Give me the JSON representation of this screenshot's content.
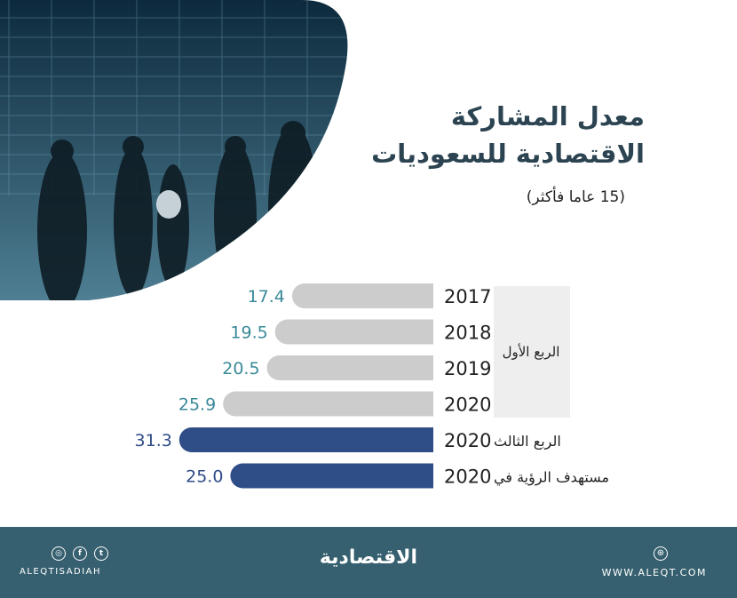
{
  "title_line1": "معدل المشاركة",
  "title_line2": "الاقتصادية للسعوديات",
  "subtitle": "(15 عاما فأكثر)",
  "chart_data": {
    "type": "bar",
    "orientation": "horizontal",
    "title": "معدل المشاركة الاقتصادية للسعوديات",
    "subtitle": "(15 عاما فأكثر)",
    "categories": [
      "2017",
      "2018",
      "2019",
      "2020",
      "الربع الثالث 2020",
      "مستهدف الرؤية في 2020"
    ],
    "year_labels": [
      "2017",
      "2018",
      "2019",
      "2020",
      "2020",
      "2020"
    ],
    "row_prefixes": [
      "",
      "",
      "",
      "",
      "الربع الثالث",
      "مستهدف الرؤية في"
    ],
    "values": [
      17.4,
      19.5,
      20.5,
      25.9,
      31.3,
      25.0
    ],
    "value_labels": [
      "17.4",
      "19.5",
      "20.5",
      "25.9",
      "31.3",
      "25.0"
    ],
    "group_label": "الربع الأول",
    "bar_colors": [
      "#cccccc",
      "#cccccc",
      "#cccccc",
      "#cccccc",
      "#2f4d87",
      "#2f4d87"
    ],
    "value_colors": [
      "#3a8a99",
      "#3a8a99",
      "#3a8a99",
      "#3a8a99",
      "#2f4d87",
      "#2f4d87"
    ],
    "xlim": [
      0,
      35
    ]
  },
  "footer": {
    "brand": "الاقتصادية",
    "handle": "ALEQTISADIAH",
    "website": "WWW.ALEQT.COM",
    "background": "#36606f"
  },
  "icons": [
    "instagram-icon",
    "facebook-icon",
    "twitter-icon",
    "globe-icon"
  ]
}
